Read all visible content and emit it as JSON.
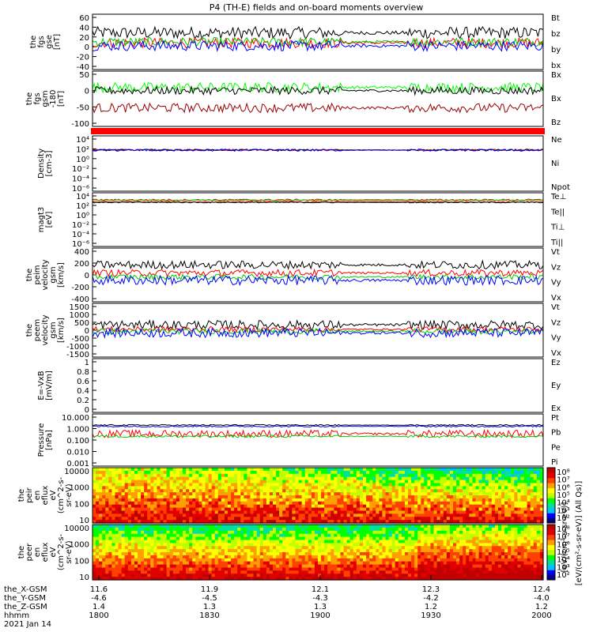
{
  "title": "P4 (TH-E) fields and on-board moments overview",
  "chart_data": [
    {
      "type": "line",
      "ylabel_lines": [
        "the",
        "fgs",
        "gse",
        "[nT]"
      ],
      "yticks": [
        60,
        40,
        20,
        0,
        -20,
        -40
      ],
      "ylim": [
        -45,
        65
      ],
      "series": [
        {
          "name": "Bt",
          "color": "#000000",
          "base": 28,
          "amp": 12
        },
        {
          "name": "bz",
          "color": "#ff0000",
          "base": 8,
          "amp": 10
        },
        {
          "name": "by",
          "color": "#00cc00",
          "base": 10,
          "amp": 9
        },
        {
          "name": "bx",
          "color": "#0000ff",
          "base": 2,
          "amp": 10
        }
      ]
    },
    {
      "type": "line",
      "ylabel_lines": [
        "the",
        "fgs",
        "gsm",
        "-180",
        "[nT]"
      ],
      "yticks": [
        50,
        0,
        -50,
        -100
      ],
      "ylim": [
        -115,
        55
      ],
      "series": [
        {
          "name": "Bx",
          "color": "#00ff00",
          "base": 5,
          "amp": 15
        },
        {
          "name": "Bx",
          "color": "#000000",
          "base": -5,
          "amp": 12
        },
        {
          "name": "Bz",
          "color": "#990000",
          "base": -58,
          "amp": 14
        }
      ]
    },
    {
      "type": "bar",
      "fill": "#ff0000"
    },
    {
      "type": "line",
      "log": true,
      "ylabel_lines": [
        "Density",
        "[cm-3]"
      ],
      "yticks": [
        "10⁴",
        "10²",
        "10⁰",
        "10⁻²",
        "10⁻⁴",
        "10⁻⁶"
      ],
      "series": [
        {
          "name": "Ne",
          "color": "#ff0000",
          "base": 1.6,
          "amp": 0.15
        },
        {
          "name": "Ni",
          "color": "#000000",
          "base": 1.6,
          "amp": 0.15
        },
        {
          "name": "Npot",
          "color": "#0000ff",
          "base": 1.55,
          "amp": 0.2
        }
      ]
    },
    {
      "type": "line",
      "log": true,
      "ylabel_lines": [
        "magt3",
        "[eV]"
      ],
      "yticks": [
        "10⁴",
        "10²",
        "10⁰",
        "10⁻²",
        "10⁻⁴",
        "10⁻⁶"
      ],
      "series": [
        {
          "name": "Te⊥",
          "color": "#ff0000",
          "base": 2.5,
          "amp": 0.1
        },
        {
          "name": "Te||",
          "color": "#000000",
          "base": 2.4,
          "amp": 0.1
        },
        {
          "name": "Ti⊥",
          "color": "#ff0000",
          "base": 2.9,
          "amp": 0.15
        },
        {
          "name": "Ti||",
          "color": "#00cc00",
          "base": 2.8,
          "amp": 0.1
        }
      ]
    },
    {
      "type": "line",
      "ylabel_lines": [
        "the",
        "peim",
        "velocity",
        "gsm",
        "[km/s]"
      ],
      "yticks": [
        400,
        200,
        0,
        -200,
        -400
      ],
      "ylim": [
        -400,
        400
      ],
      "series": [
        {
          "name": "Vt",
          "color": "#000000",
          "base": 150,
          "amp": 60
        },
        {
          "name": "Vz",
          "color": "#ff0000",
          "base": 30,
          "amp": 50
        },
        {
          "name": "Vy",
          "color": "#00cc00",
          "base": -30,
          "amp": 40
        },
        {
          "name": "Vx",
          "color": "#0000ff",
          "base": -80,
          "amp": 70
        }
      ]
    },
    {
      "type": "line",
      "ylabel_lines": [
        "the",
        "peem",
        "velocity",
        "gsm",
        "[km/s]"
      ],
      "yticks": [
        1500,
        1000,
        500,
        0,
        -500,
        -1000,
        -1500
      ],
      "ylim": [
        -1500,
        1500
      ],
      "series": [
        {
          "name": "Vt",
          "color": "#000000",
          "base": 300,
          "amp": 250
        },
        {
          "name": "Vz",
          "color": "#ff0000",
          "base": 50,
          "amp": 150
        },
        {
          "name": "Vy",
          "color": "#00cc00",
          "base": -60,
          "amp": 150
        },
        {
          "name": "Vx",
          "color": "#0000ff",
          "base": -150,
          "amp": 250
        }
      ]
    },
    {
      "type": "line",
      "ylabel_lines": [
        "E=-VxB",
        "[mV/m]"
      ],
      "yticks": [
        1.0,
        0.8,
        0.6,
        0.4,
        0.2,
        0.0
      ],
      "ylim": [
        0,
        1
      ],
      "series": [
        {
          "name": "Ez",
          "color": "#ff0000",
          "base": null,
          "amp": 0
        },
        {
          "name": "Ey",
          "color": "#00cc00",
          "base": null,
          "amp": 0
        },
        {
          "name": "Ex",
          "color": "#0000ff",
          "base": null,
          "amp": 0
        }
      ]
    },
    {
      "type": "line",
      "log": true,
      "ylabel_lines": [
        "Pressure",
        "[nPa]"
      ],
      "yticks": [
        "10.000",
        "1.000",
        "0.100",
        "0.010",
        "0.001"
      ],
      "series": [
        {
          "name": "Pt",
          "color": "#000000",
          "base": 0.2,
          "amp": 0.05
        },
        {
          "name": "Pb",
          "color": "#ff0000",
          "base": -0.5,
          "amp": 0.3
        },
        {
          "name": "Pe",
          "color": "#00cc00",
          "base": -0.7,
          "amp": 0.1
        },
        {
          "name": "Pi",
          "color": "#0000ff",
          "base": 0.1,
          "amp": 0.06
        }
      ]
    },
    {
      "type": "heatmap",
      "ylabel_lines": [
        "the",
        "peir",
        "en",
        "eflux",
        "eV",
        "(cm^2-s-",
        "sr-eV)"
      ],
      "yticks": [
        "10000",
        "1000",
        "100",
        "10"
      ]
    },
    {
      "type": "heatmap",
      "ylabel_lines": [
        "the",
        "peer",
        "en",
        "eflux",
        "eV",
        "(cm^2-s-",
        "sr-eV)"
      ],
      "yticks": [
        "10000",
        "1000",
        "100",
        "10"
      ]
    }
  ],
  "colorbar": {
    "ticks_top": [
      "10⁸",
      "10⁷",
      "10⁶",
      "10⁵",
      "10⁴",
      "10³",
      "10²"
    ],
    "ticks_bottom": [
      "10⁸",
      "10⁷",
      "10⁶",
      "10⁵",
      "10⁴",
      "10³",
      "10²"
    ],
    "label": "[eV/(cm²-s-sr-eV)] (All Qs)]",
    "label_overlay": "[eV/(cm²-s-sr-eV)]",
    "colors": [
      "#000080",
      "#0000ff",
      "#00c0ff",
      "#00e0a0",
      "#00ff00",
      "#c0ff00",
      "#ffff00",
      "#ffa000",
      "#ff4000",
      "#e00000",
      "#c00000"
    ]
  },
  "xaxis": {
    "rows": [
      {
        "label": "the_X-GSM",
        "values": [
          "11.6",
          "11.9",
          "12.1",
          "12.3",
          "12.4"
        ]
      },
      {
        "label": "the_Y-GSM",
        "values": [
          "-4.6",
          "-4.5",
          "-4.3",
          "-4.2",
          "-4.0"
        ]
      },
      {
        "label": "the_Z-GSM",
        "values": [
          "1.4",
          "1.3",
          "1.3",
          "1.2",
          "1.2"
        ]
      },
      {
        "label": "hhmm",
        "values": [
          "1800",
          "1830",
          "1900",
          "1930",
          "2000"
        ]
      }
    ],
    "date": "2021 Jan 14"
  }
}
